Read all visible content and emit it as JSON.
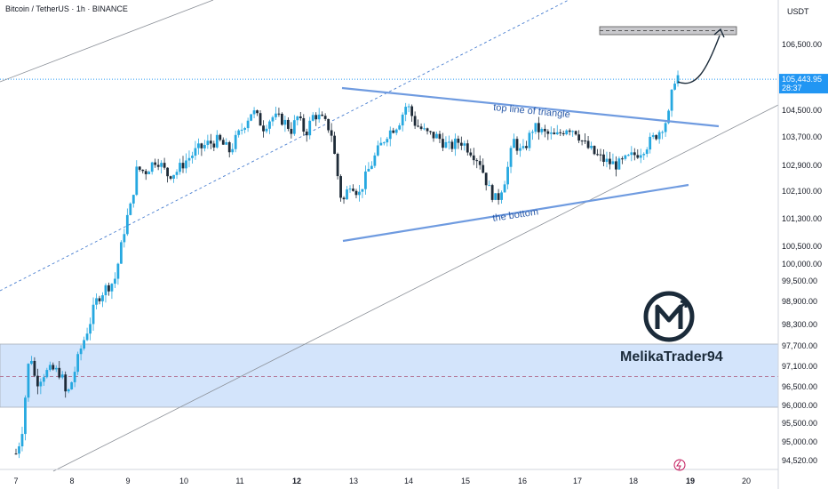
{
  "header": {
    "title": "Bitcoin / TetherUS · 1h · BINANCE",
    "currency": "USDT"
  },
  "colors": {
    "up": "#26a8e0",
    "down": "#1e2b38",
    "trend": "#6f9be0",
    "zone_fill": "#d3e4fb",
    "target_fill": "#c8c8cc",
    "price_label": "#2196f3",
    "midline": "#b57a9a"
  },
  "price_label": {
    "value": "105,443.95",
    "timer": "28:37"
  },
  "watermark": {
    "text": "MelikaTrader94"
  },
  "chart_data": {
    "type": "candlestick",
    "title": "Bitcoin / TetherUS · 1h · BINANCE",
    "ylim": [
      94300,
      107500
    ],
    "y_ticks": [
      "106,500.00",
      "104,500.00",
      "103,700.00",
      "102,900.00",
      "102,100.00",
      "101,300.00",
      "100,500.00",
      "100,000.00",
      "99,500.00",
      "98,900.00",
      "98,300.00",
      "97,700.00",
      "97,100.00",
      "96,500.00",
      "96,000.00",
      "95,500.00",
      "95,000.00",
      "94,520.00"
    ],
    "x_ticks": [
      "7",
      "8",
      "9",
      "10",
      "11",
      "12",
      "13",
      "14",
      "15",
      "16",
      "17",
      "18",
      "19",
      "20"
    ],
    "x_bold": [
      "12",
      "19"
    ],
    "candles_close_path": [
      [
        7.0,
        94700
      ],
      [
        7.1,
        95200
      ],
      [
        7.2,
        96800
      ],
      [
        7.25,
        97600
      ],
      [
        7.35,
        96600
      ],
      [
        7.5,
        96900
      ],
      [
        7.65,
        97000
      ],
      [
        7.8,
        96900
      ],
      [
        7.9,
        96200
      ],
      [
        8.0,
        96700
      ],
      [
        8.15,
        97600
      ],
      [
        8.3,
        98300
      ],
      [
        8.45,
        99000
      ],
      [
        8.6,
        99300
      ],
      [
        8.75,
        99500
      ],
      [
        8.85,
        100300
      ],
      [
        8.95,
        101200
      ],
      [
        9.05,
        101700
      ],
      [
        9.15,
        102800
      ],
      [
        9.3,
        102700
      ],
      [
        9.5,
        103100
      ],
      [
        9.7,
        102600
      ],
      [
        9.85,
        102700
      ],
      [
        10.0,
        103000
      ],
      [
        10.2,
        103300
      ],
      [
        10.4,
        103500
      ],
      [
        10.6,
        103600
      ],
      [
        10.8,
        103300
      ],
      [
        11.0,
        103900
      ],
      [
        11.2,
        104500
      ],
      [
        11.4,
        104000
      ],
      [
        11.55,
        104300
      ],
      [
        11.75,
        104200
      ],
      [
        11.9,
        103900
      ],
      [
        12.0,
        104300
      ],
      [
        12.15,
        103800
      ],
      [
        12.3,
        104400
      ],
      [
        12.45,
        104200
      ],
      [
        12.6,
        103900
      ],
      [
        12.7,
        102800
      ],
      [
        12.8,
        101700
      ],
      [
        12.95,
        102400
      ],
      [
        13.1,
        102000
      ],
      [
        13.25,
        102700
      ],
      [
        13.4,
        103200
      ],
      [
        13.6,
        103800
      ],
      [
        13.8,
        104100
      ],
      [
        13.95,
        104700
      ],
      [
        14.1,
        104100
      ],
      [
        14.3,
        103800
      ],
      [
        14.5,
        103700
      ],
      [
        14.7,
        103400
      ],
      [
        14.9,
        103600
      ],
      [
        15.1,
        103300
      ],
      [
        15.25,
        103000
      ],
      [
        15.4,
        102200
      ],
      [
        15.55,
        101800
      ],
      [
        15.7,
        102500
      ],
      [
        15.85,
        103600
      ],
      [
        16.0,
        103200
      ],
      [
        16.2,
        104000
      ],
      [
        16.4,
        103800
      ],
      [
        16.6,
        103700
      ],
      [
        16.8,
        104000
      ],
      [
        16.95,
        103900
      ],
      [
        17.1,
        103500
      ],
      [
        17.3,
        103200
      ],
      [
        17.5,
        103000
      ],
      [
        17.7,
        102900
      ],
      [
        17.9,
        103100
      ],
      [
        18.1,
        103300
      ],
      [
        18.3,
        103600
      ],
      [
        18.45,
        103900
      ],
      [
        18.6,
        104300
      ],
      [
        18.7,
        105400
      ],
      [
        18.75,
        105600
      ],
      [
        18.8,
        105444
      ]
    ],
    "annotations": [
      {
        "text": "top line of triangle",
        "kind": "trendline"
      },
      {
        "text": "the bottom",
        "kind": "trendline"
      }
    ],
    "zones": [
      {
        "kind": "demand zone",
        "from": 95950,
        "to": 97750
      },
      {
        "kind": "target zone",
        "from": 107000,
        "to": 107200
      }
    ],
    "last_price": 105443.95,
    "grid": false
  }
}
